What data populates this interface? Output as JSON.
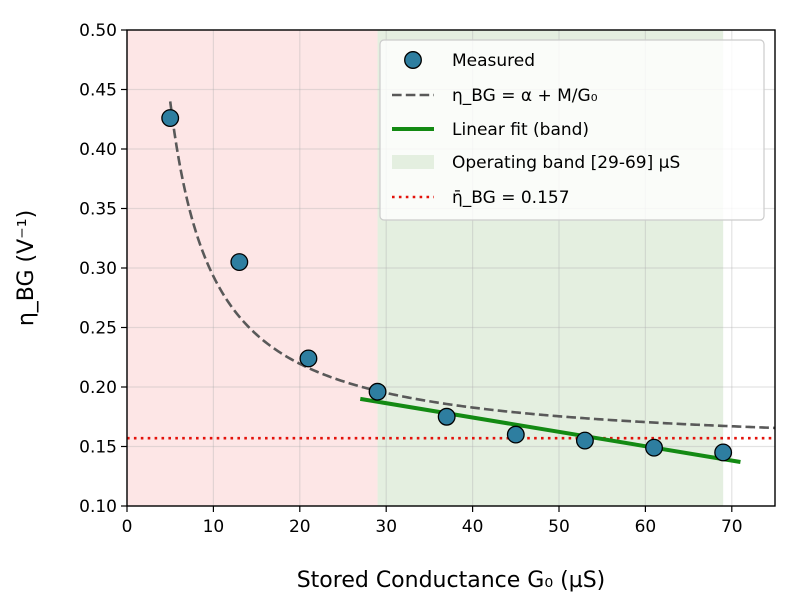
{
  "chart_data": {
    "type": "scatter",
    "xlabel": "Stored Conductance G₀ (µS)",
    "ylabel": "η_BG (V⁻¹)",
    "xlim": [
      0,
      75
    ],
    "ylim": [
      0.1,
      0.5
    ],
    "x_ticks": [
      0,
      10,
      20,
      30,
      40,
      50,
      60,
      70
    ],
    "y_ticks": [
      0.1,
      0.15,
      0.2,
      0.25,
      0.3,
      0.35,
      0.4,
      0.45,
      0.5
    ],
    "x_tick_labels": [
      "0",
      "10",
      "20",
      "30",
      "40",
      "50",
      "60",
      "70"
    ],
    "y_tick_labels": [
      "0.10",
      "0.15",
      "0.20",
      "0.25",
      "0.30",
      "0.35",
      "0.40",
      "0.45",
      "0.50"
    ],
    "grid": true,
    "legend_position": "top-right",
    "regions": [
      {
        "x_from": 0,
        "x_to": 29,
        "color": "#fde6e6"
      },
      {
        "x_from": 29,
        "x_to": 69,
        "color": "#e4efe0"
      }
    ],
    "series": [
      {
        "name": "Measured",
        "kind": "scatter",
        "color": "#2e7ea0",
        "x": [
          5,
          13,
          21,
          29,
          37,
          45,
          53,
          61,
          69
        ],
        "y": [
          0.426,
          0.305,
          0.224,
          0.196,
          0.175,
          0.16,
          0.155,
          0.149,
          0.145
        ]
      },
      {
        "name": "η_BG = α + M/G₀",
        "kind": "dashed-curve",
        "color": "#595959",
        "alpha": 0.146,
        "M": 1.47,
        "x_range": [
          5,
          75
        ]
      },
      {
        "name": "Linear fit (band)",
        "kind": "line",
        "color": "#138a13",
        "x": [
          27,
          71
        ],
        "y": [
          0.19,
          0.137
        ]
      },
      {
        "name": "η̄_BG = 0.157",
        "kind": "hline",
        "color": "#e3120b",
        "y": 0.157
      }
    ],
    "legend": [
      {
        "label": "Measured",
        "marker": "circle"
      },
      {
        "label": "η_BG = α + M/G₀",
        "marker": "dashed"
      },
      {
        "label": "Linear fit (band)",
        "marker": "solid"
      },
      {
        "label": "Operating band [29-69] µS",
        "marker": "patch"
      },
      {
        "label": "η̄_BG = 0.157",
        "marker": "dotted"
      }
    ]
  }
}
